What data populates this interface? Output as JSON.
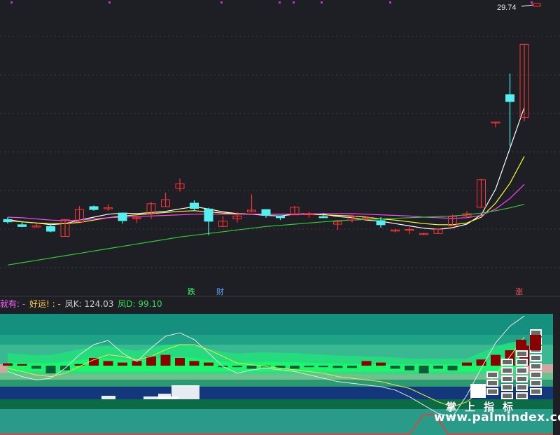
{
  "price_label": "29.74",
  "signals": {
    "fall": "跌",
    "wealth": "财",
    "rise": "涨"
  },
  "indicator": {
    "prefix": "就有: -",
    "luck": "好运! : -",
    "k_label": "凤K: 124.03",
    "d_label": "凤D: 99.10"
  },
  "watermark": {
    "cn": "掌上指标",
    "url": "www.palmindex.com"
  },
  "colors": {
    "up": "#ff3333",
    "down": "#54f0f0",
    "ma5": "#ffffff",
    "ma10": "#ffff33",
    "ma20": "#ff44ff",
    "ma60": "#33cc33",
    "panel_dark_red": "#8b0000",
    "panel_dark_green": "#0b5c3a"
  },
  "chart_data": {
    "type": "candlestick",
    "candles": [
      {
        "o": 12.4,
        "h": 12.6,
        "l": 12.05,
        "c": 12.2
      },
      {
        "o": 11.95,
        "h": 12.25,
        "l": 11.75,
        "c": 11.8
      },
      {
        "o": 11.85,
        "h": 12.05,
        "l": 11.7,
        "c": 11.85
      },
      {
        "o": 11.8,
        "h": 11.9,
        "l": 11.3,
        "c": 11.4
      },
      {
        "o": 10.95,
        "h": 12.4,
        "l": 10.95,
        "c": 12.4
      },
      {
        "o": 12.2,
        "h": 13.55,
        "l": 12.2,
        "c": 13.25
      },
      {
        "o": 13.5,
        "h": 13.6,
        "l": 13.15,
        "c": 13.25
      },
      {
        "o": 13.4,
        "h": 13.7,
        "l": 13.15,
        "c": 13.4
      },
      {
        "o": 12.95,
        "h": 12.95,
        "l": 12.05,
        "c": 12.3
      },
      {
        "o": 12.55,
        "h": 12.7,
        "l": 12.1,
        "c": 12.55
      },
      {
        "o": 12.95,
        "h": 13.9,
        "l": 12.45,
        "c": 13.75
      },
      {
        "o": 13.5,
        "h": 14.7,
        "l": 13.5,
        "c": 14.1
      },
      {
        "o": 15.05,
        "h": 15.9,
        "l": 14.8,
        "c": 15.45
      },
      {
        "o": 13.8,
        "h": 14.05,
        "l": 13.15,
        "c": 13.35
      },
      {
        "o": 13.3,
        "h": 13.4,
        "l": 11.05,
        "c": 12.25
      },
      {
        "o": 11.8,
        "h": 12.7,
        "l": 11.8,
        "c": 12.25
      },
      {
        "o": 12.45,
        "h": 13.05,
        "l": 12.15,
        "c": 12.7
      },
      {
        "o": 13.05,
        "h": 14.55,
        "l": 13.05,
        "c": 13.2
      },
      {
        "o": 13.25,
        "h": 13.25,
        "l": 12.55,
        "c": 12.75
      },
      {
        "o": 12.7,
        "h": 12.75,
        "l": 12.35,
        "c": 12.55
      },
      {
        "o": 12.8,
        "h": 13.55,
        "l": 12.8,
        "c": 13.45
      },
      {
        "o": 12.9,
        "h": 13.05,
        "l": 12.55,
        "c": 12.9
      },
      {
        "o": 12.65,
        "h": 12.95,
        "l": 12.55,
        "c": 12.55
      },
      {
        "o": 12.0,
        "h": 12.35,
        "l": 11.5,
        "c": 12.2
      },
      {
        "o": 12.35,
        "h": 12.8,
        "l": 12.15,
        "c": 12.65
      },
      {
        "o": 12.55,
        "h": 12.6,
        "l": 12.35,
        "c": 12.55
      },
      {
        "o": 12.3,
        "h": 12.6,
        "l": 11.7,
        "c": 11.95
      },
      {
        "o": 11.5,
        "h": 11.6,
        "l": 11.3,
        "c": 11.5
      },
      {
        "o": 11.55,
        "h": 11.75,
        "l": 11.15,
        "c": 11.55
      },
      {
        "o": 11.2,
        "h": 11.25,
        "l": 11.05,
        "c": 11.2
      },
      {
        "o": 11.2,
        "h": 11.65,
        "l": 11.2,
        "c": 11.55
      },
      {
        "o": 11.85,
        "h": 12.8,
        "l": 11.85,
        "c": 12.65
      },
      {
        "o": 12.7,
        "h": 13.1,
        "l": 12.5,
        "c": 12.9
      },
      {
        "o": 13.45,
        "h": 15.9,
        "l": 13.45,
        "c": 15.8
      },
      {
        "o": 20.75,
        "h": 20.75,
        "l": 20.3,
        "c": 20.75
      },
      {
        "o": 23.1,
        "h": 24.9,
        "l": 18.7,
        "c": 22.5
      },
      {
        "o": 21.15,
        "h": 27.4,
        "l": 20.8,
        "c": 27.4
      }
    ],
    "ma_series": [
      {
        "name": "MA5",
        "values": [
          12.4,
          12.2,
          12.1,
          11.95,
          12.05,
          12.35,
          12.6,
          12.85,
          12.95,
          12.9,
          13.0,
          13.1,
          13.3,
          13.5,
          13.3,
          13.05,
          12.9,
          12.85,
          12.75,
          12.7,
          12.85,
          12.9,
          12.85,
          12.65,
          12.55,
          12.35,
          12.25,
          12.05,
          11.85,
          11.65,
          11.55,
          11.7,
          12.0,
          12.8,
          15.0,
          18.5,
          22.0
        ]
      },
      {
        "name": "MA10",
        "values": [
          12.3,
          12.2,
          12.1,
          12.05,
          12.05,
          12.15,
          12.35,
          12.55,
          12.7,
          12.8,
          12.9,
          13.0,
          13.1,
          13.15,
          13.05,
          12.95,
          12.9,
          12.85,
          12.85,
          12.85,
          12.85,
          12.85,
          12.8,
          12.75,
          12.7,
          12.6,
          12.45,
          12.35,
          12.2,
          12.05,
          11.95,
          11.95,
          12.1,
          12.6,
          13.8,
          15.5,
          17.8
        ]
      },
      {
        "name": "MA20",
        "values": [
          12.6,
          12.55,
          12.45,
          12.35,
          12.3,
          12.35,
          12.45,
          12.55,
          12.6,
          12.65,
          12.7,
          12.75,
          12.8,
          12.85,
          12.85,
          12.85,
          12.85,
          12.85,
          12.85,
          12.85,
          12.85,
          12.85,
          12.9,
          12.9,
          12.9,
          12.85,
          12.8,
          12.75,
          12.7,
          12.6,
          12.55,
          12.5,
          12.55,
          12.75,
          13.3,
          14.2,
          15.4
        ]
      },
      {
        "name": "MA60",
        "values": [
          8.5,
          8.7,
          8.9,
          9.1,
          9.3,
          9.5,
          9.7,
          9.9,
          10.1,
          10.3,
          10.5,
          10.7,
          10.9,
          11.05,
          11.2,
          11.35,
          11.5,
          11.65,
          11.8,
          11.9,
          12.0,
          12.1,
          12.2,
          12.3,
          12.35,
          12.4,
          12.45,
          12.5,
          12.55,
          12.6,
          12.65,
          12.7,
          12.8,
          12.95,
          13.15,
          13.4,
          13.7
        ]
      }
    ],
    "y_range": [
      7.5,
      30.0
    ],
    "indicator": {
      "K": 124.03,
      "D": 99.1,
      "bars": [
        3,
        2,
        -4,
        -10,
        -6,
        2,
        10,
        6,
        4,
        6,
        12,
        14,
        10,
        6,
        4,
        -2,
        -2,
        -4,
        -2,
        -3,
        -4,
        -2,
        -2,
        -3,
        -3,
        6,
        4,
        -4,
        -6,
        -10,
        -4,
        -6,
        4,
        8,
        14,
        20,
        26
      ],
      "k_line": [
        58,
        52,
        48,
        50,
        62,
        78,
        90,
        95,
        80,
        70,
        86,
        100,
        104,
        96,
        80,
        64,
        56,
        60,
        62,
        60,
        58,
        54,
        50,
        46,
        44,
        42,
        40,
        36,
        28,
        18,
        8,
        4,
        30,
        62,
        92,
        112,
        124
      ],
      "d_line": [
        62,
        58,
        54,
        52,
        56,
        64,
        72,
        78,
        76,
        72,
        76,
        84,
        90,
        90,
        84,
        76,
        68,
        66,
        64,
        62,
        60,
        58,
        56,
        52,
        50,
        48,
        46,
        42,
        38,
        30,
        22,
        16,
        22,
        36,
        54,
        76,
        99
      ]
    }
  }
}
